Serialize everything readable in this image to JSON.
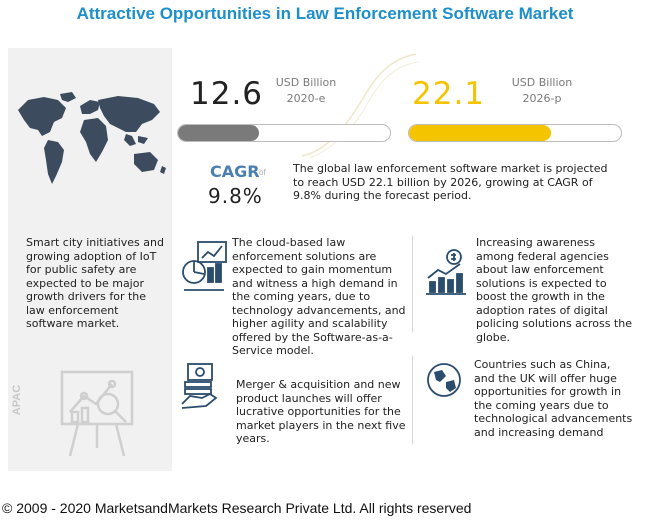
{
  "title": "Attractive Opportunities in Law Enforcement Software Market",
  "chart_data": {
    "type": "bar",
    "categories": [
      "2020-e",
      "2026-p"
    ],
    "values": [
      12.6,
      22.1
    ],
    "unit": "USD Billion",
    "cagr_label": "CAGR",
    "cagr_value": "9.8%",
    "colors": [
      "#7a7a7a",
      "#f5c400"
    ]
  },
  "kpi": {
    "left": {
      "value": "12.6",
      "unit": "USD Billion",
      "year": "2020-e"
    },
    "right": {
      "value": "22.1",
      "unit": "USD Billion",
      "year": "2026-p"
    }
  },
  "cagr": {
    "label": "CAGR",
    "of": "of",
    "value": "9.8%"
  },
  "summary": "The global law enforcement software market is projected to reach USD 22.1 billion by 2026, growing at CAGR of 9.8% during the forecast period.",
  "left_note": "Smart city initiatives and growing adoption of IoT for public safety are expected to be major growth drivers for the law enforcement software market.",
  "apac_label": "APAC",
  "points": [
    {
      "icon": "analytics-icon",
      "text": "The cloud-based law enforcement solutions are expected to gain momentum and witness a high demand in the coming years, due to technology advancements, and higher agility and scalability offered by the Software-as-a-Service model."
    },
    {
      "icon": "growth-chart-icon",
      "text": "Increasing awareness among federal agencies about law enforcement solutions is expected to boost the growth in the adoption rates of digital policing solutions across the globe."
    },
    {
      "icon": "money-hand-icon",
      "text": "Merger & acquisition and new product launches will offer lucrative opportunities for the market players in the next five years."
    },
    {
      "icon": "globe-icon",
      "text": "Countries such as China, and the UK will offer huge opportunities for growth in the coming years due to technological advancements and increasing demand"
    }
  ],
  "footer": "© 2009 - 2020 MarketsandMarkets Research Private Ltd. All rights reserved"
}
